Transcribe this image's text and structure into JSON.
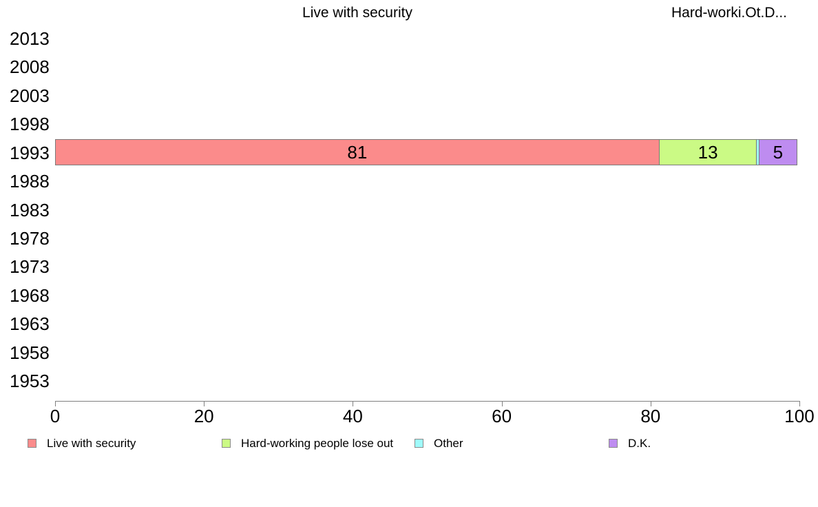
{
  "column_headers": [
    {
      "text": "Live with security"
    },
    {
      "text": "Hard-worki.Ot.D..."
    }
  ],
  "chart_data": {
    "type": "bar",
    "orientation": "horizontal",
    "stacked": true,
    "title": "Live with security",
    "xlabel": "",
    "ylabel": "",
    "xlim": [
      0,
      100
    ],
    "grid": false,
    "legend_position": "bottom",
    "categories": [
      "2013",
      "2008",
      "2003",
      "1998",
      "1993",
      "1988",
      "1983",
      "1978",
      "1973",
      "1968",
      "1963",
      "1958",
      "1953"
    ],
    "x_ticks": [
      "0",
      "20",
      "40",
      "60",
      "80",
      "100"
    ],
    "data_category": "1993",
    "series": [
      {
        "name": "Live with security",
        "color": "#FB8B8B",
        "value": 81,
        "label": "81",
        "width_pct": 81.2
      },
      {
        "name": "Hard-working people lose out",
        "color": "#CBFA85",
        "value": 13,
        "label": "13",
        "width_pct": 13.2
      },
      {
        "name": "Other",
        "color": "#9FFBFB",
        "value": 0,
        "label": "",
        "width_pct": 0.4
      },
      {
        "name": "D.K.",
        "color": "#BE8CF0",
        "value": 5,
        "label": "5",
        "width_pct": 5.2
      }
    ],
    "note": "All other years have no bars (no data shown)"
  }
}
